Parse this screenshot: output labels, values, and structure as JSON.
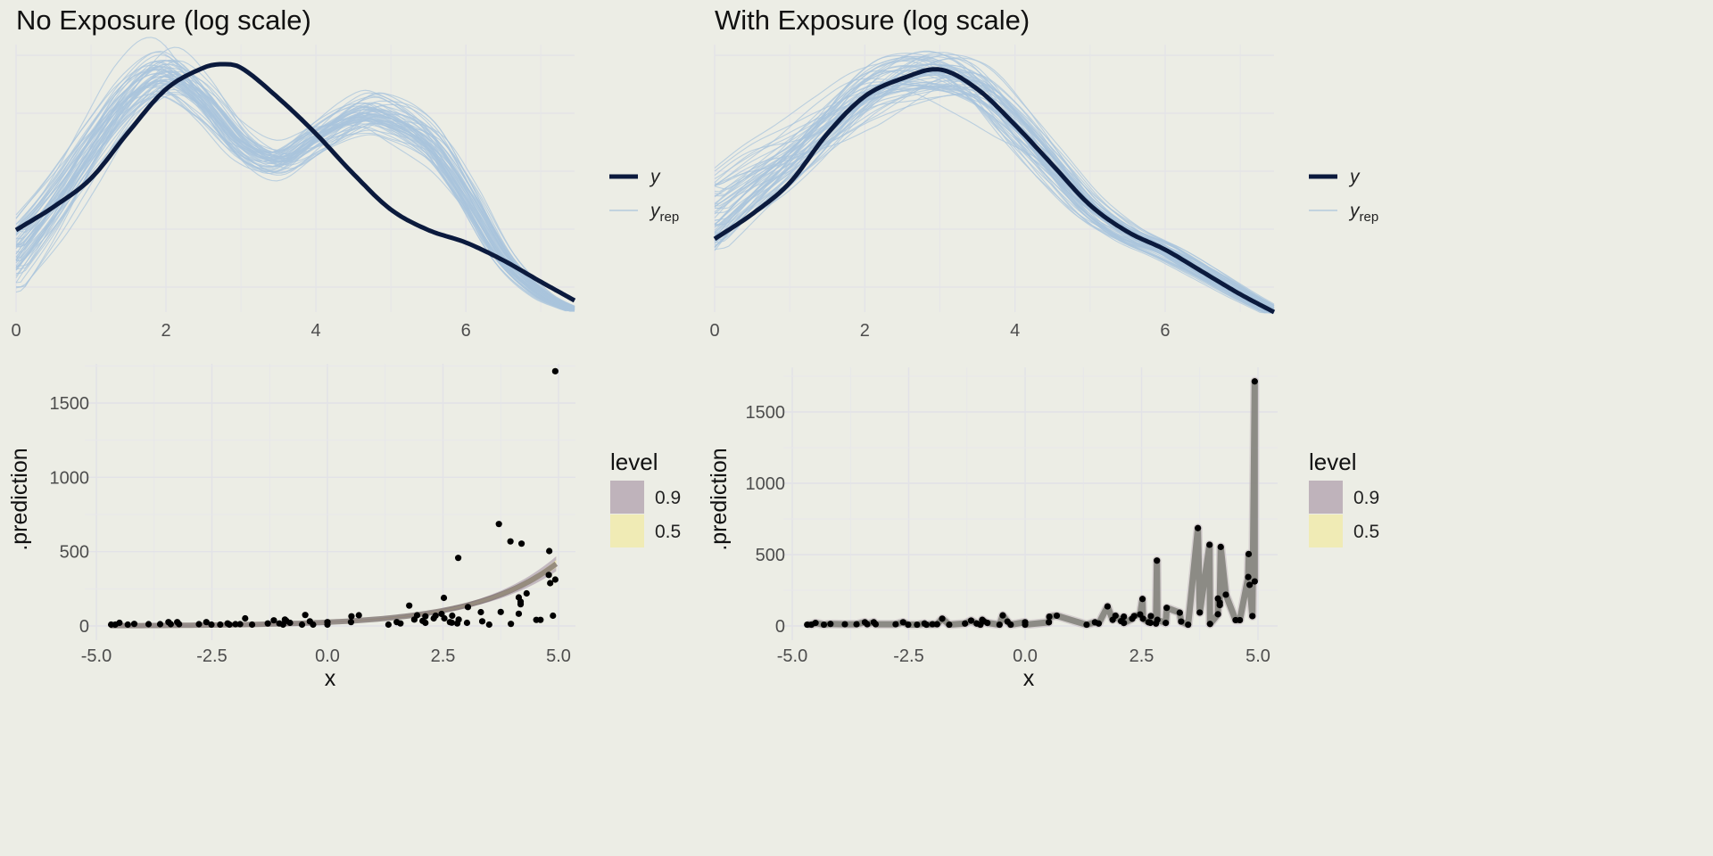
{
  "chart_data": [
    {
      "type": "line",
      "title": "No Exposure (log scale)",
      "xlabel": "",
      "ylabel": "",
      "xlim": [
        0,
        7.45
      ],
      "ylim": [
        0,
        0.3
      ],
      "x_ticks": [
        "0",
        "2",
        "4",
        "6"
      ],
      "x_tick_values": [
        0,
        2,
        4,
        6
      ],
      "grid": true,
      "legend": {
        "position": "right",
        "y_label": "y",
        "yrep_label": "y",
        "yrep_sub": "rep"
      },
      "x_grid": [
        0,
        0.5,
        1,
        1.5,
        2,
        2.5,
        2.75,
        3,
        3.5,
        4,
        4.5,
        5,
        5.5,
        6,
        6.5,
        7,
        7.45
      ],
      "y_density": [
        0.102,
        0.128,
        0.16,
        0.212,
        0.26,
        0.284,
        0.288,
        0.284,
        0.25,
        0.21,
        0.165,
        0.125,
        0.102,
        0.088,
        0.068,
        0.044,
        0.023
      ],
      "yrep_x_grid": [
        0,
        0.5,
        1,
        1.5,
        2,
        2.5,
        3,
        3.5,
        4,
        4.5,
        4.8,
        5.5,
        6,
        6.5,
        7,
        7.45
      ],
      "yrep_mean_density": [
        0.07,
        0.125,
        0.19,
        0.25,
        0.28,
        0.25,
        0.2,
        0.18,
        0.205,
        0.228,
        0.232,
        0.2,
        0.14,
        0.07,
        0.03,
        0.012
      ],
      "yrep_draws": 60,
      "colors": {
        "y": "#0b1a3d",
        "yrep": "#a9c4dc"
      }
    },
    {
      "type": "line",
      "title": "With Exposure (log scale)",
      "xlabel": "",
      "ylabel": "",
      "xlim": [
        0,
        7.45
      ],
      "ylim": [
        0,
        0.3
      ],
      "x_ticks": [
        "0",
        "2",
        "4",
        "6"
      ],
      "x_tick_values": [
        0,
        2,
        4,
        6
      ],
      "grid": true,
      "legend": {
        "position": "right",
        "y_label": "y",
        "yrep_label": "y",
        "yrep_sub": "rep"
      },
      "x_grid": [
        0,
        0.5,
        1,
        1.5,
        2,
        2.5,
        3,
        3.5,
        4,
        4.5,
        5,
        5.5,
        6,
        6.5,
        7,
        7.45
      ],
      "y_density": [
        0.092,
        0.12,
        0.155,
        0.21,
        0.252,
        0.272,
        0.282,
        0.26,
        0.22,
        0.175,
        0.13,
        0.1,
        0.08,
        0.055,
        0.03,
        0.01
      ],
      "yrep_x_grid": [
        0,
        0.5,
        1,
        1.5,
        2,
        2.5,
        3,
        3.5,
        4,
        4.5,
        5,
        5.5,
        6,
        6.5,
        7,
        7.45
      ],
      "yrep_mean_density": [
        0.115,
        0.15,
        0.18,
        0.215,
        0.25,
        0.27,
        0.275,
        0.26,
        0.22,
        0.175,
        0.13,
        0.1,
        0.08,
        0.055,
        0.03,
        0.01
      ],
      "yrep_draws": 60,
      "colors": {
        "y": "#0b1a3d",
        "yrep": "#a9c4dc"
      }
    },
    {
      "type": "scatter",
      "title": "",
      "xlabel": "x",
      "ylabel": ".prediction",
      "xlim": [
        -5.25,
        5.25
      ],
      "ylim": [
        -60,
        1760
      ],
      "x_ticks": [
        "-5.0",
        "-2.5",
        "0.0",
        "2.5",
        "5.0"
      ],
      "x_tick_values": [
        -5,
        -2.5,
        0,
        2.5,
        5
      ],
      "y_ticks": [
        "0",
        "500",
        "1000",
        "1500"
      ],
      "y_tick_values": [
        0,
        500,
        1000,
        1500
      ],
      "grid": true,
      "fit": {
        "kind": "exponential",
        "intercept_log": 3.22,
        "slope": 0.569
      },
      "legend": {
        "position": "right",
        "title": "level",
        "levels": [
          "0.9",
          "0.5"
        ]
      },
      "colors": {
        "level_0.9": "#bfb3bb",
        "level_0.5": "#f0ebb5",
        "fit": "#7a6e6b",
        "points": "#000000"
      }
    },
    {
      "type": "scatter",
      "title": "",
      "xlabel": "x",
      "ylabel": ".prediction",
      "xlim": [
        -5.25,
        5.25
      ],
      "ylim": [
        -60,
        1760
      ],
      "x_ticks": [
        "-5.0",
        "-2.5",
        "0.0",
        "2.5",
        "5.0"
      ],
      "x_tick_values": [
        -5,
        -2.5,
        0,
        2.5,
        5
      ],
      "y_ticks": [
        "0",
        "500",
        "1000",
        "1500"
      ],
      "y_tick_values": [
        0,
        500,
        1000,
        1500
      ],
      "grid": true,
      "fit": {
        "kind": "interpolated"
      },
      "legend": {
        "position": "right",
        "title": "level",
        "levels": [
          "0.9",
          "0.5"
        ]
      },
      "colors": {
        "level_0.9": "#bfb3bb",
        "level_0.5": "#f0ebb5",
        "fit": "#7f7f78",
        "points": "#000000"
      }
    }
  ],
  "observations": [
    [
      -4.68,
      9
    ],
    [
      -4.59,
      9
    ],
    [
      -4.5,
      21
    ],
    [
      -4.32,
      9
    ],
    [
      -4.18,
      14
    ],
    [
      -3.87,
      12
    ],
    [
      -3.62,
      12
    ],
    [
      -3.44,
      26
    ],
    [
      -3.39,
      12
    ],
    [
      -3.25,
      26
    ],
    [
      -3.21,
      12
    ],
    [
      -2.78,
      12
    ],
    [
      -2.62,
      26
    ],
    [
      -2.51,
      9
    ],
    [
      -2.32,
      9
    ],
    [
      -2.16,
      17
    ],
    [
      -2.12,
      9
    ],
    [
      -1.99,
      12
    ],
    [
      -1.89,
      12
    ],
    [
      -1.78,
      51
    ],
    [
      -1.63,
      9
    ],
    [
      -1.29,
      17
    ],
    [
      -1.16,
      38
    ],
    [
      -1.04,
      17
    ],
    [
      -0.96,
      9
    ],
    [
      -0.92,
      43
    ],
    [
      -0.89,
      34
    ],
    [
      -0.81,
      21
    ],
    [
      -0.55,
      9
    ],
    [
      -0.48,
      74
    ],
    [
      -0.38,
      31
    ],
    [
      -0.31,
      9
    ],
    [
      0.0,
      26
    ],
    [
      0.0,
      9
    ],
    [
      0.51,
      26
    ],
    [
      0.52,
      65
    ],
    [
      0.68,
      72
    ],
    [
      1.32,
      9
    ],
    [
      1.5,
      26
    ],
    [
      1.58,
      17
    ],
    [
      1.77,
      137
    ],
    [
      1.88,
      43
    ],
    [
      1.94,
      72
    ],
    [
      2.06,
      34
    ],
    [
      2.12,
      65
    ],
    [
      2.12,
      21
    ],
    [
      2.3,
      51
    ],
    [
      2.34,
      69
    ],
    [
      2.47,
      81
    ],
    [
      2.52,
      189
    ],
    [
      2.53,
      51
    ],
    [
      2.65,
      26
    ],
    [
      2.69,
      22
    ],
    [
      2.7,
      69
    ],
    [
      2.81,
      17
    ],
    [
      2.83,
      458
    ],
    [
      2.84,
      43
    ],
    [
      3.02,
      21
    ],
    [
      3.04,
      127
    ],
    [
      3.32,
      93
    ],
    [
      3.35,
      31
    ],
    [
      3.5,
      9
    ],
    [
      3.71,
      686
    ],
    [
      3.75,
      94
    ],
    [
      3.96,
      569
    ],
    [
      3.97,
      14
    ],
    [
      4.14,
      82
    ],
    [
      4.14,
      192
    ],
    [
      4.18,
      146
    ],
    [
      4.18,
      163
    ],
    [
      4.2,
      554
    ],
    [
      4.31,
      219
    ],
    [
      4.52,
      41
    ],
    [
      4.61,
      41
    ],
    [
      4.79,
      343
    ],
    [
      4.8,
      504
    ],
    [
      4.82,
      288
    ],
    [
      4.88,
      69
    ],
    [
      4.93,
      1714
    ],
    [
      4.93,
      312
    ]
  ]
}
